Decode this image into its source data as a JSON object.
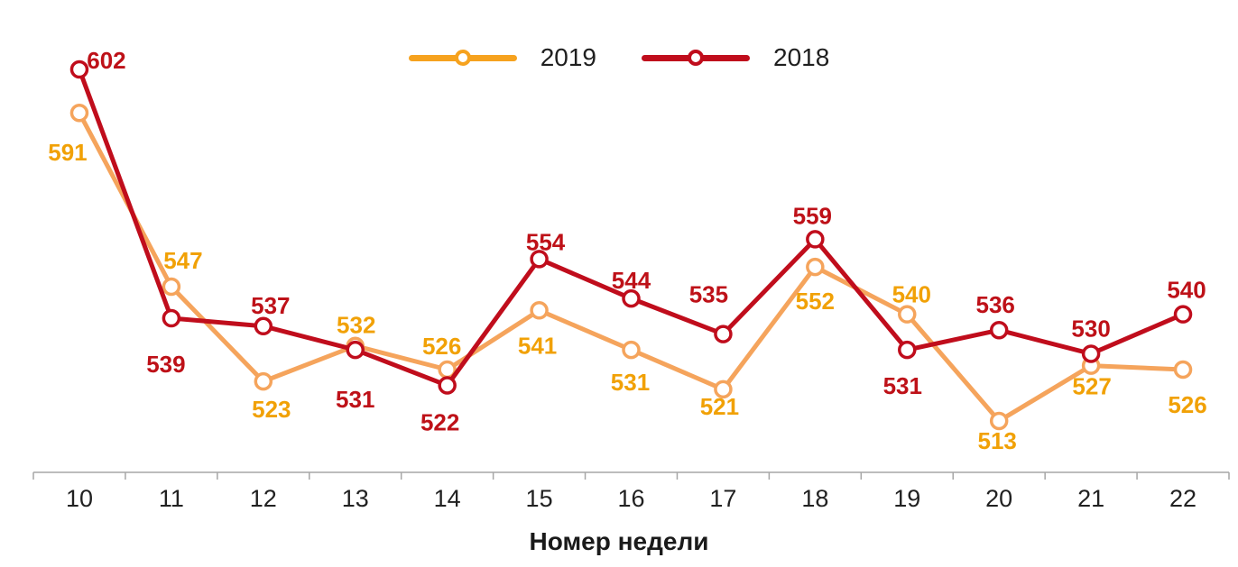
{
  "chart_data": {
    "type": "line",
    "title": "",
    "xlabel": "Номер недели",
    "ylabel": "",
    "categories": [
      10,
      11,
      12,
      13,
      14,
      15,
      16,
      17,
      18,
      19,
      20,
      21,
      22
    ],
    "series": [
      {
        "name": "2019",
        "line_color": "#F5A45C",
        "label_color": "#F1A106",
        "values": [
          591,
          547,
          523,
          532,
          526,
          541,
          531,
          521,
          552,
          540,
          513,
          527,
          526
        ],
        "label_offsets": [
          [
            -13,
            53
          ],
          [
            13,
            -20
          ],
          [
            9,
            40
          ],
          [
            1,
            -14
          ],
          [
            -6,
            -17
          ],
          [
            -2,
            48
          ],
          [
            -1,
            45
          ],
          [
            -4,
            28
          ],
          [
            0,
            47
          ],
          [
            5,
            -13
          ],
          [
            -2,
            31
          ],
          [
            1,
            32
          ],
          [
            5,
            48
          ]
        ]
      },
      {
        "name": "2018",
        "line_color": "#C00D1C",
        "label_color": "#BE1118",
        "values": [
          602,
          539,
          537,
          531,
          522,
          554,
          544,
          535,
          559,
          531,
          536,
          530,
          540
        ],
        "label_offsets": [
          [
            30,
            -1
          ],
          [
            -6,
            60
          ],
          [
            8,
            -14
          ],
          [
            0,
            64
          ],
          [
            -8,
            50
          ],
          [
            7,
            -10
          ],
          [
            0,
            -11
          ],
          [
            -16,
            -35
          ],
          [
            -3,
            -17
          ],
          [
            -5,
            49
          ],
          [
            -4,
            -19
          ],
          [
            0,
            -19
          ],
          [
            4,
            -18
          ]
        ]
      }
    ],
    "legend": [
      {
        "label": "2019",
        "color": "#F6A21E"
      },
      {
        "label": "2018",
        "color": "#C00D1C"
      }
    ],
    "legend_position": "top-center",
    "grid": false,
    "ylim": [
      505,
      610
    ],
    "axis_color": "#A6A6A6",
    "text_color": "#212121"
  }
}
